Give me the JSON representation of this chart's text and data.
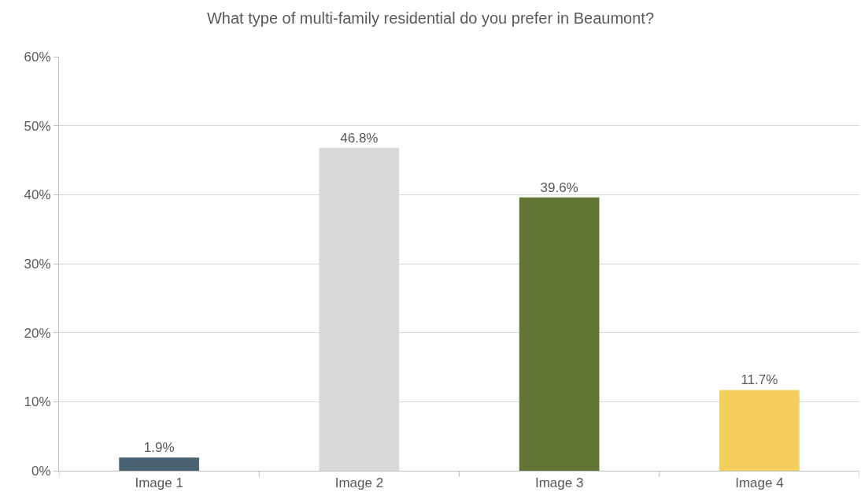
{
  "chart_data": {
    "type": "bar",
    "title": "What type of multi-family residential do you prefer in Beaumont?",
    "categories": [
      "Image 1",
      "Image 2",
      "Image 3",
      "Image 4"
    ],
    "values": [
      1.9,
      46.8,
      39.6,
      11.7
    ],
    "value_labels": [
      "1.9%",
      "46.8%",
      "39.6%",
      "11.7%"
    ],
    "colors": [
      "#4a6272",
      "#d9d9d9",
      "#627535",
      "#f5cf5e"
    ],
    "ylim": [
      0,
      60
    ],
    "yticks": [
      {
        "value": 0,
        "label": "0%"
      },
      {
        "value": 10,
        "label": "10%"
      },
      {
        "value": 20,
        "label": "20%"
      },
      {
        "value": 30,
        "label": "30%"
      },
      {
        "value": 40,
        "label": "40%"
      },
      {
        "value": 50,
        "label": "50%"
      },
      {
        "value": 60,
        "label": "60%"
      }
    ],
    "grid": "y"
  }
}
